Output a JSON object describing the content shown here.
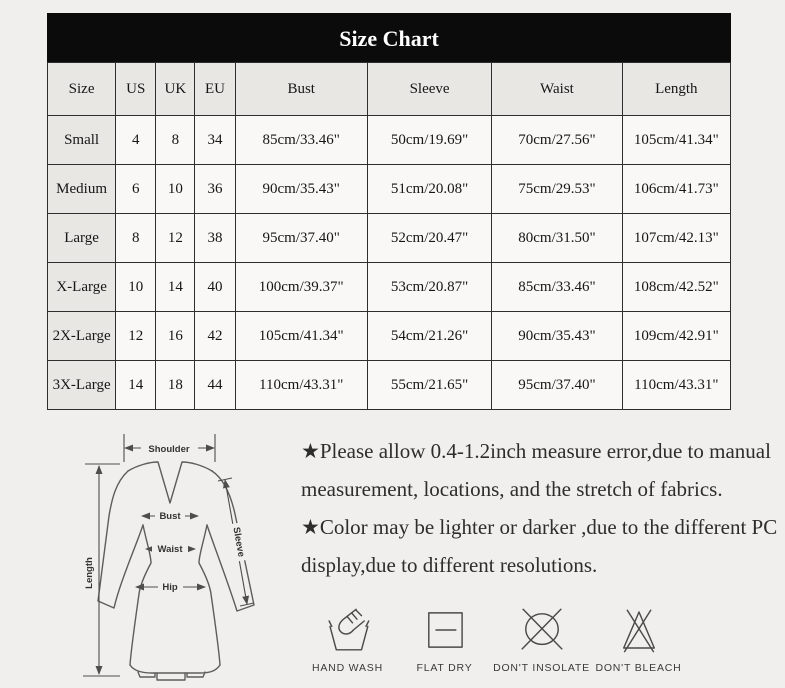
{
  "page": {
    "background": "#f1efed"
  },
  "size_chart": {
    "title": "Size Chart",
    "columns": [
      "Size",
      "US",
      "UK",
      "EU",
      "Bust",
      "Sleeve",
      "Waist",
      "Length"
    ],
    "rows": [
      [
        "Small",
        "4",
        "8",
        "34",
        "85cm/33.46\"",
        "50cm/19.69\"",
        "70cm/27.56\"",
        "105cm/41.34\""
      ],
      [
        "Medium",
        "6",
        "10",
        "36",
        "90cm/35.43\"",
        "51cm/20.08\"",
        "75cm/29.53\"",
        "106cm/41.73\""
      ],
      [
        "Large",
        "8",
        "12",
        "38",
        "95cm/37.40\"",
        "52cm/20.47\"",
        "80cm/31.50\"",
        "107cm/42.13\""
      ],
      [
        "X-Large",
        "10",
        "14",
        "40",
        "100cm/39.37\"",
        "53cm/20.87\"",
        "85cm/33.46\"",
        "108cm/42.52\""
      ],
      [
        "2X-Large",
        "12",
        "16",
        "42",
        "105cm/41.34\"",
        "54cm/21.26\"",
        "90cm/35.43\"",
        "109cm/42.91\""
      ],
      [
        "3X-Large",
        "14",
        "18",
        "44",
        "110cm/43.31\"",
        "55cm/21.65\"",
        "95cm/37.40\"",
        "110cm/43.31\""
      ]
    ],
    "colors": {
      "title_bg": "#0b0b0b",
      "title_text": "#ffffff",
      "header_cell_bg": "#e9e7e4",
      "data_cell_bg": "#faf8f6",
      "border": "#2e2e2e"
    }
  },
  "diagram": {
    "labels": {
      "shoulder": "Shoulder",
      "bust": "Bust",
      "waist": "Waist",
      "hip": "Hip",
      "length": "Length",
      "sleeve": "Sleeve"
    }
  },
  "notes": [
    "★Please allow 0.4-1.2inch measure error,due to manual measurement, locations, and the stretch of fabrics.",
    "★Color may be lighter or darker ,due to the different PC display,due to different resolutions."
  ],
  "care": {
    "items": [
      {
        "icon": "hand-wash-icon",
        "label": "HAND WASH"
      },
      {
        "icon": "flat-dry-icon",
        "label": "FLAT DRY"
      },
      {
        "icon": "dont-insolate-icon",
        "label": "DON'T INSOLATE"
      },
      {
        "icon": "dont-bleach-icon",
        "label": "DON'T BLEACH"
      }
    ]
  }
}
